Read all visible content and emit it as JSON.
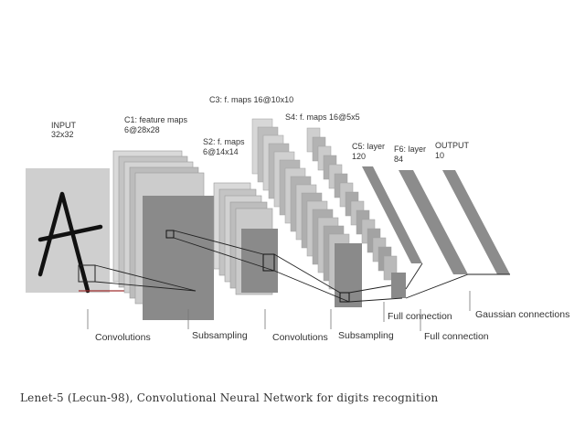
{
  "layers": {
    "input": {
      "line1": "INPUT",
      "line2": "32x32"
    },
    "c1": {
      "line1": "C1: feature maps",
      "line2": "6@28x28"
    },
    "s2": {
      "line1": "S2: f. maps",
      "line2": "6@14x14"
    },
    "c3": {
      "line1": "C3: f. maps 16@10x10"
    },
    "s4": {
      "line1": "S4: f. maps 16@5x5"
    },
    "c5": {
      "line1": "C5: layer",
      "line2": "120"
    },
    "f6": {
      "line1": "F6: layer",
      "line2": "84"
    },
    "output": {
      "line1": "OUTPUT",
      "line2": "10"
    }
  },
  "operations": {
    "conv1": "Convolutions",
    "sub1": "Subsampling",
    "conv2": "Convolutions",
    "sub2": "Subsampling",
    "full1": "Full connection",
    "full2": "Full connection",
    "gauss": "Gaussian connections"
  },
  "caption": "Lenet-5 (Lecun-98), Convolutional Neural Network for digits recognition",
  "colors": {
    "input_bg": "#cfcfcf",
    "map_light": "#d9d9d9",
    "map_mid": "#a8a8a8",
    "map_dark": "#7a7a7a",
    "stroke": "#444444",
    "rf_red": "#a03030"
  }
}
